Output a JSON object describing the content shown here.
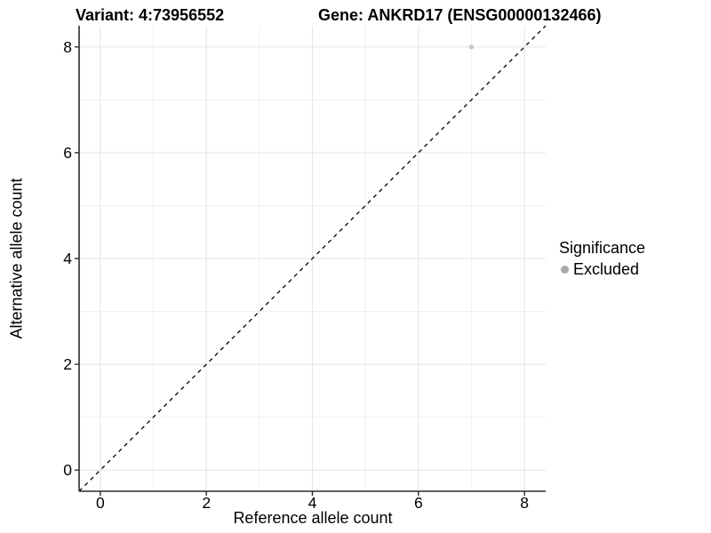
{
  "header": {
    "variant_title": "Variant: 4:73956552",
    "gene_title": "Gene: ANKRD17 (ENSG00000132466)"
  },
  "chart_data": {
    "type": "scatter",
    "title": "Variant: 4:73956552    Gene: ANKRD17 (ENSG00000132466)",
    "xlabel": "Reference allele count",
    "ylabel": "Alternative allele count",
    "xlim": [
      -0.4,
      8.4
    ],
    "ylim": [
      -0.4,
      8.4
    ],
    "x_ticks": [
      0,
      2,
      4,
      6,
      8
    ],
    "y_ticks": [
      0,
      2,
      4,
      6,
      8
    ],
    "x_minor_ticks": [
      1,
      3,
      5,
      7
    ],
    "y_minor_ticks": [
      1,
      3,
      5,
      7
    ],
    "grid": "major+minor",
    "legend_position": "right",
    "reference_line": {
      "kind": "identity",
      "style": "dashed",
      "color": "#000000"
    },
    "series": [
      {
        "name": "Excluded",
        "color": "#c6c6c6",
        "points": [
          {
            "x": 7,
            "y": 8
          }
        ]
      }
    ],
    "legend": {
      "title": "Significance",
      "entries": [
        {
          "label": "Excluded",
          "color": "#a8a8a8"
        }
      ]
    }
  },
  "colors": {
    "axis_line": "#2b2b2b",
    "grid_major": "#e4e4e4",
    "grid_minor": "#f0f0f0",
    "tick_label": "#000000",
    "point_fill": "#c6c6c6",
    "legend_dot": "#a8a8a8",
    "background": "#ffffff"
  }
}
